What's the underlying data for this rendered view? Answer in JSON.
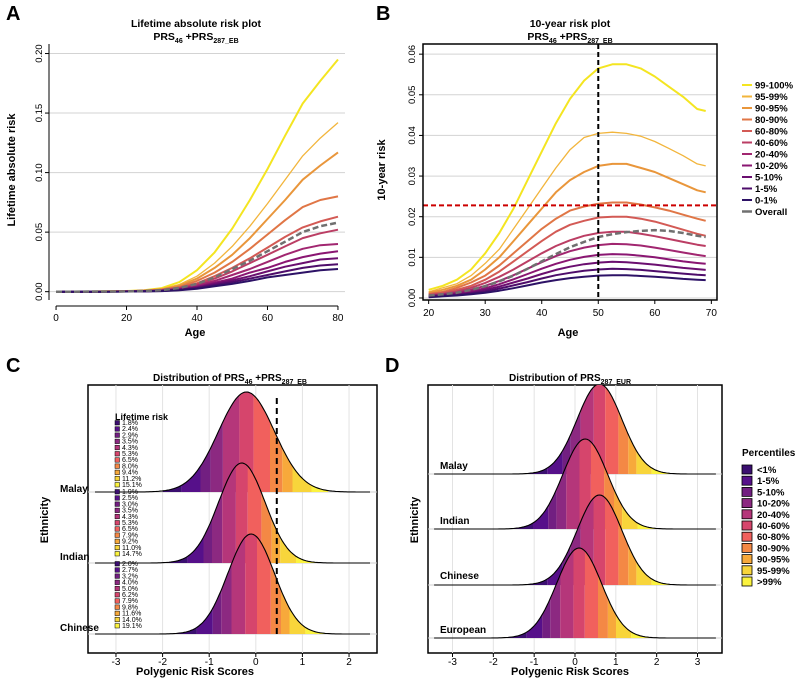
{
  "colors": {
    "percentile_colors": [
      "#2a1568",
      "#3b0f70",
      "#56108a",
      "#721f81",
      "#8c2981",
      "#b5367a",
      "#d6456c",
      "#f1605d",
      "#f48845",
      "#f7a93b",
      "#f8d53b",
      "#fbf33f"
    ],
    "gridline": "#d3d3d3",
    "overall": "#707070",
    "reference_line": "#cc0000",
    "vertical_line": "#000000"
  },
  "panels": {
    "A": {
      "letter": "A",
      "title": "Lifetime absolute risk plot",
      "subtitle": {
        "a": "PRS",
        "a_sub": "46",
        "plus": " +PRS",
        "b_sub": "287_EB"
      },
      "xlabel": "Age",
      "ylabel": "Lifetime absolute risk",
      "x_ticks": [
        0,
        20,
        40,
        60,
        80
      ],
      "y_tick_labels": [
        "0.00",
        "0.05",
        "0.10",
        "0.15",
        "0.20"
      ]
    },
    "B": {
      "letter": "B",
      "title": "10-year risk plot",
      "subtitle": {
        "a": "PRS",
        "a_sub": "46",
        "plus": " +PRS",
        "b_sub": "287_EB"
      },
      "xlabel": "Age",
      "ylabel": "10-year risk",
      "x_ticks": [
        20,
        30,
        40,
        50,
        60,
        70
      ],
      "y_tick_labels": [
        "0.00",
        "0.01",
        "0.02",
        "0.03",
        "0.04",
        "0.05",
        "0.06"
      ],
      "legend": [
        "99-100%",
        "95-99%",
        "90-95%",
        "80-90%",
        "60-80%",
        "40-60%",
        "20-40%",
        "10-20%",
        "5-10%",
        "1-5%",
        "0-1%",
        "Overall"
      ]
    },
    "C": {
      "letter": "C",
      "title": {
        "a": "Distribution of PRS",
        "a_sub": "46",
        "plus": " +PRS",
        "b_sub": "287_EB"
      },
      "xlabel": "Polygenic Risk Scores",
      "ylabel": "Ethnicity",
      "x_ticks": [
        "-3",
        "-2",
        "-1",
        "0",
        "1",
        "2"
      ],
      "lifetime_risk_label": "Lifetime risk",
      "groups": [
        "Malay",
        "Indian",
        "Chinese"
      ],
      "risk_labels": [
        [
          "1.8%",
          "2.4%",
          "2.9%",
          "3.5%",
          "4.3%",
          "5.3%",
          "6.5%",
          "8.0%",
          "9.4%",
          "11.2%",
          "15.1%"
        ],
        [
          "1.9%",
          "2.5%",
          "3.0%",
          "3.5%",
          "4.3%",
          "5.3%",
          "6.5%",
          "7.9%",
          "9.2%",
          "11.0%",
          "14.7%"
        ],
        [
          "2.0%",
          "2.7%",
          "3.2%",
          "4.0%",
          "5.0%",
          "6.2%",
          "7.9%",
          "9.8%",
          "11.6%",
          "14.0%",
          "19.1%"
        ]
      ]
    },
    "D": {
      "letter": "D",
      "title": {
        "a": "Distribution of PRS",
        "a_sub": "287_EUR"
      },
      "xlabel": "Polygenic Risk Scores",
      "ylabel": "Ethnicity",
      "x_ticks": [
        "-3",
        "-2",
        "-1",
        "0",
        "1",
        "2",
        "3"
      ],
      "groups": [
        "Malay",
        "Indian",
        "Chinese",
        "European"
      ],
      "legend_title": "Percentiles",
      "legend": [
        "<1%",
        "1-5%",
        "5-10%",
        "10-20%",
        "20-40%",
        "40-60%",
        "60-80%",
        "80-90%",
        "90-95%",
        "95-99%",
        ">99%"
      ]
    }
  },
  "chart_data": [
    {
      "panel": "A",
      "type": "line",
      "title": "Lifetime absolute risk plot",
      "xlabel": "Age",
      "ylabel": "Lifetime absolute risk",
      "xlim": [
        -2,
        82
      ],
      "ylim": [
        -0.007,
        0.208
      ],
      "x": [
        0,
        5,
        10,
        15,
        20,
        25,
        30,
        35,
        40,
        45,
        50,
        55,
        60,
        65,
        70,
        75,
        80
      ],
      "series": [
        {
          "name": "99-100%",
          "values": [
            0,
            0,
            0.0001,
            0.0003,
            0.0006,
            0.0012,
            0.003,
            0.008,
            0.018,
            0.033,
            0.053,
            0.077,
            0.103,
            0.131,
            0.158,
            0.177,
            0.195
          ]
        },
        {
          "name": "95-99%",
          "values": [
            0,
            0,
            0.0001,
            0.0002,
            0.0005,
            0.001,
            0.0025,
            0.006,
            0.013,
            0.024,
            0.038,
            0.055,
            0.074,
            0.094,
            0.114,
            0.129,
            0.142
          ]
        },
        {
          "name": "90-95%",
          "values": [
            0,
            0,
            0.0001,
            0.0002,
            0.0004,
            0.0009,
            0.002,
            0.005,
            0.011,
            0.02,
            0.031,
            0.045,
            0.061,
            0.077,
            0.094,
            0.106,
            0.117
          ]
        },
        {
          "name": "80-90%",
          "values": [
            0,
            0,
            0.0001,
            0.0002,
            0.0003,
            0.0008,
            0.0017,
            0.004,
            0.009,
            0.016,
            0.025,
            0.036,
            0.048,
            0.06,
            0.071,
            0.077,
            0.08
          ]
        },
        {
          "name": "60-80%",
          "values": [
            0,
            0,
            0,
            0.0001,
            0.0003,
            0.0007,
            0.0014,
            0.0035,
            0.007,
            0.013,
            0.02,
            0.028,
            0.037,
            0.046,
            0.054,
            0.059,
            0.063
          ]
        },
        {
          "name": "40-60%",
          "values": [
            0,
            0,
            0,
            0.0001,
            0.0002,
            0.0006,
            0.0012,
            0.003,
            0.006,
            0.011,
            0.017,
            0.024,
            0.031,
            0.038,
            0.045,
            0.049,
            0.052
          ]
        },
        {
          "name": "20-40%",
          "values": [
            0,
            0,
            0,
            0.0001,
            0.0002,
            0.0005,
            0.001,
            0.0025,
            0.005,
            0.009,
            0.014,
            0.019,
            0.025,
            0.031,
            0.036,
            0.039,
            0.04
          ]
        },
        {
          "name": "10-20%",
          "values": [
            0,
            0,
            0,
            0.0001,
            0.0002,
            0.0004,
            0.0008,
            0.002,
            0.004,
            0.0075,
            0.011,
            0.016,
            0.02,
            0.025,
            0.029,
            0.032,
            0.034
          ]
        },
        {
          "name": "5-10%",
          "values": [
            0,
            0,
            0,
            0.0001,
            0.0001,
            0.0003,
            0.0007,
            0.0017,
            0.0035,
            0.0065,
            0.0095,
            0.013,
            0.017,
            0.021,
            0.024,
            0.027,
            0.028
          ]
        },
        {
          "name": "1-5%",
          "values": [
            0,
            0,
            0,
            0,
            0.0001,
            0.0003,
            0.0006,
            0.0014,
            0.003,
            0.0055,
            0.008,
            0.011,
            0.014,
            0.017,
            0.02,
            0.022,
            0.023
          ]
        },
        {
          "name": "0-1%",
          "values": [
            0,
            0,
            0,
            0,
            0.0001,
            0.0002,
            0.0005,
            0.0012,
            0.0025,
            0.0045,
            0.0065,
            0.009,
            0.012,
            0.014,
            0.016,
            0.018,
            0.019
          ]
        },
        {
          "name": "Overall",
          "values": [
            0,
            0,
            0.0001,
            0.0001,
            0.0002,
            0.0006,
            0.0013,
            0.0032,
            0.0065,
            0.012,
            0.019,
            0.026,
            0.034,
            0.042,
            0.05,
            0.055,
            0.058
          ]
        }
      ]
    },
    {
      "panel": "B",
      "type": "line",
      "title": "10-year risk plot",
      "xlabel": "Age",
      "ylabel": "10-year risk",
      "xlim": [
        19,
        71
      ],
      "ylim": [
        -0.0005,
        0.0625
      ],
      "reference_lines": {
        "horizontal_y": 0.0228,
        "vertical_x": 50
      },
      "x": [
        20,
        22.5,
        25,
        27.5,
        30,
        32.5,
        35,
        37.5,
        40,
        42.5,
        45,
        47.5,
        50,
        52.5,
        55,
        57.5,
        60,
        62.5,
        65,
        67.5,
        69
      ],
      "series": [
        {
          "name": "99-100%",
          "values": [
            0.002,
            0.003,
            0.0045,
            0.007,
            0.011,
            0.016,
            0.022,
            0.029,
            0.036,
            0.043,
            0.049,
            0.0535,
            0.0565,
            0.0575,
            0.0575,
            0.0565,
            0.0545,
            0.052,
            0.0495,
            0.0465,
            0.046
          ]
        },
        {
          "name": "95-99%",
          "values": [
            0.0015,
            0.0025,
            0.0035,
            0.0055,
            0.0085,
            0.012,
            0.017,
            0.022,
            0.027,
            0.032,
            0.0365,
            0.0395,
            0.0405,
            0.0408,
            0.0405,
            0.0398,
            0.0385,
            0.0368,
            0.035,
            0.033,
            0.0325
          ]
        },
        {
          "name": "90-95%",
          "values": [
            0.0013,
            0.002,
            0.003,
            0.0045,
            0.007,
            0.01,
            0.014,
            0.018,
            0.022,
            0.026,
            0.029,
            0.031,
            0.0325,
            0.033,
            0.033,
            0.032,
            0.031,
            0.0295,
            0.028,
            0.0265,
            0.026
          ]
        },
        {
          "name": "80-90%",
          "values": [
            0.001,
            0.0015,
            0.0025,
            0.0038,
            0.0055,
            0.008,
            0.011,
            0.014,
            0.017,
            0.0195,
            0.0215,
            0.0225,
            0.0232,
            0.0235,
            0.0235,
            0.023,
            0.0223,
            0.0215,
            0.0205,
            0.0195,
            0.019
          ]
        },
        {
          "name": "60-80%",
          "values": [
            0.0009,
            0.0013,
            0.002,
            0.003,
            0.0045,
            0.0065,
            0.009,
            0.0115,
            0.014,
            0.0163,
            0.018,
            0.019,
            0.0198,
            0.02,
            0.02,
            0.0195,
            0.0188,
            0.0178,
            0.0168,
            0.0158,
            0.0153
          ]
        },
        {
          "name": "40-60%",
          "values": [
            0.0007,
            0.001,
            0.0016,
            0.0025,
            0.0037,
            0.0052,
            0.007,
            0.009,
            0.011,
            0.0128,
            0.0142,
            0.0153,
            0.016,
            0.0163,
            0.0163,
            0.0158,
            0.0152,
            0.0145,
            0.0138,
            0.0131,
            0.0128
          ]
        },
        {
          "name": "20-40%",
          "values": [
            0.0006,
            0.0009,
            0.0013,
            0.002,
            0.003,
            0.0042,
            0.0056,
            0.0072,
            0.0088,
            0.0103,
            0.0115,
            0.0124,
            0.013,
            0.0133,
            0.0132,
            0.0129,
            0.0124,
            0.0118,
            0.0112,
            0.0106,
            0.0103
          ]
        },
        {
          "name": "10-20%",
          "values": [
            0.0005,
            0.0007,
            0.0011,
            0.0016,
            0.0024,
            0.0034,
            0.0046,
            0.0059,
            0.0072,
            0.0084,
            0.0094,
            0.0101,
            0.0106,
            0.0108,
            0.0107,
            0.0104,
            0.01,
            0.0095,
            0.009,
            0.0086,
            0.0084
          ]
        },
        {
          "name": "5-10%",
          "values": [
            0.0004,
            0.0006,
            0.0009,
            0.0013,
            0.002,
            0.0028,
            0.0038,
            0.0048,
            0.0059,
            0.0069,
            0.0077,
            0.0083,
            0.0087,
            0.0089,
            0.0088,
            0.0085,
            0.0082,
            0.0078,
            0.0074,
            0.0071,
            0.0069
          ]
        },
        {
          "name": "1-5%",
          "values": [
            0.0003,
            0.0005,
            0.0007,
            0.0011,
            0.0016,
            0.0023,
            0.0031,
            0.0039,
            0.0048,
            0.0056,
            0.0062,
            0.0067,
            0.007,
            0.0072,
            0.0071,
            0.0069,
            0.0066,
            0.0063,
            0.006,
            0.0057,
            0.0056
          ]
        },
        {
          "name": "0-1%",
          "values": [
            0.0002,
            0.0004,
            0.0006,
            0.0009,
            0.0013,
            0.0018,
            0.0024,
            0.0031,
            0.0038,
            0.0044,
            0.0049,
            0.0052,
            0.0055,
            0.0056,
            0.0056,
            0.0054,
            0.0052,
            0.005,
            0.0047,
            0.0045,
            0.0044
          ]
        },
        {
          "name": "Overall",
          "values": [
            0.0006,
            0.0009,
            0.0013,
            0.002,
            0.0029,
            0.0041,
            0.0055,
            0.0072,
            0.009,
            0.0108,
            0.0125,
            0.0138,
            0.015,
            0.0157,
            0.0162,
            0.0165,
            0.0167,
            0.0165,
            0.016,
            0.0153,
            0.015
          ]
        }
      ]
    },
    {
      "panel": "C",
      "type": "area",
      "subtype": "ridgeline",
      "title": "Distribution of PRS46 +PRS287_EB",
      "xlabel": "Polygenic Risk Scores",
      "ylabel": "Ethnicity",
      "xlim": [
        -3.6,
        2.6
      ],
      "reference_x": 0.45,
      "fill_range": [
        -2.0,
        1.55
      ],
      "percentile_breaks": [
        0,
        0.01,
        0.05,
        0.1,
        0.2,
        0.4,
        0.6,
        0.8,
        0.9,
        0.95,
        0.99,
        1
      ],
      "series": [
        {
          "name": "Malay",
          "mean": -0.2,
          "sd": 0.6,
          "peak_height": 1.0,
          "baseline_index": 0
        },
        {
          "name": "Indian",
          "mean": -0.3,
          "sd": 0.5,
          "peak_height": 1.0,
          "baseline_index": 1
        },
        {
          "name": "Chinese",
          "mean": -0.1,
          "sd": 0.5,
          "peak_height": 1.0,
          "baseline_index": 2
        }
      ]
    },
    {
      "panel": "D",
      "type": "area",
      "subtype": "ridgeline",
      "title": "Distribution of PRS287_EUR",
      "xlabel": "Polygenic Risk Scores",
      "ylabel": "Ethnicity",
      "xlim": [
        -3.6,
        3.6
      ],
      "fill_range": [
        -2.0,
        2.6
      ],
      "percentile_breaks": [
        0,
        0.01,
        0.05,
        0.1,
        0.2,
        0.4,
        0.6,
        0.8,
        0.9,
        0.95,
        0.99,
        1
      ],
      "series": [
        {
          "name": "Malay",
          "mean": 0.6,
          "sd": 0.55,
          "peak_height": 1.0,
          "baseline_index": 0
        },
        {
          "name": "Indian",
          "mean": 0.25,
          "sd": 0.55,
          "peak_height": 1.0,
          "baseline_index": 1
        },
        {
          "name": "Chinese",
          "mean": 0.6,
          "sd": 0.55,
          "peak_height": 1.0,
          "baseline_index": 2
        },
        {
          "name": "European",
          "mean": 0.1,
          "sd": 0.55,
          "peak_height": 1.0,
          "baseline_index": 3
        }
      ]
    }
  ]
}
